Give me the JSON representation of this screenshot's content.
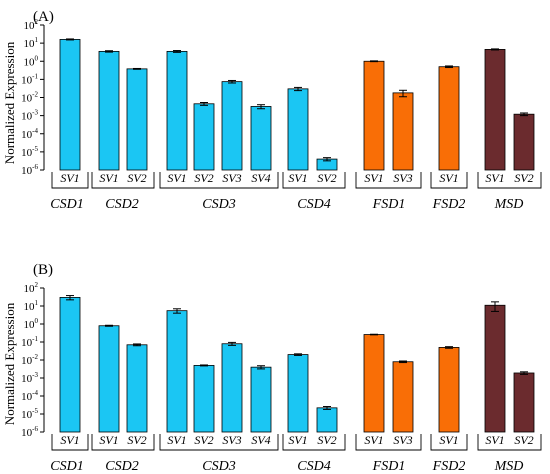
{
  "colors": {
    "CSD": "#1BC6F3",
    "FSD": "#F96E06",
    "MSD": "#6B2B2E"
  },
  "chart_data": [
    {
      "type": "bar",
      "panel_label": "(A)",
      "ylabel": "Normalized Expression",
      "yscale": "log",
      "ylim": [
        1e-06,
        100
      ],
      "ytick_base": "10",
      "ytick_exponents": [
        "2",
        "1",
        "0",
        "-1",
        "-2",
        "-3",
        "-4",
        "-5",
        "-6"
      ],
      "ytick_values": [
        100,
        10,
        1,
        0.1,
        0.01,
        0.001,
        0.0001,
        1e-05,
        1e-06
      ],
      "categories": [
        "SV1",
        "SV1",
        "SV2",
        "SV1",
        "SV2",
        "SV3",
        "SV4",
        "SV1",
        "SV2",
        "SV1",
        "SV3",
        "SV1",
        "SV1",
        "SV2"
      ],
      "groups": [
        {
          "name": "CSD1",
          "family": "CSD",
          "variants": [
            "SV1"
          ],
          "values": [
            16
          ],
          "errors": [
            1.0
          ]
        },
        {
          "name": "CSD2",
          "family": "CSD",
          "variants": [
            "SV1",
            "SV2"
          ],
          "values": [
            3.5,
            0.38
          ],
          "errors": [
            0.3,
            0.02
          ]
        },
        {
          "name": "CSD3",
          "family": "CSD",
          "variants": [
            "SV1",
            "SV2",
            "SV3",
            "SV4"
          ],
          "values": [
            3.5,
            0.0045,
            0.075,
            0.0032
          ],
          "errors": [
            0.4,
            0.0008,
            0.012,
            0.0008
          ]
        },
        {
          "name": "CSD4",
          "family": "CSD",
          "variants": [
            "SV1",
            "SV2"
          ],
          "values": [
            0.03,
            4e-06
          ],
          "errors": [
            0.006,
            8e-07
          ]
        },
        {
          "name": "FSD1",
          "family": "FSD",
          "variants": [
            "SV1",
            "SV3"
          ],
          "values": [
            1.0,
            0.018
          ],
          "errors": [
            0.05,
            0.007
          ]
        },
        {
          "name": "FSD2",
          "family": "FSD",
          "variants": [
            "SV1"
          ],
          "values": [
            0.5
          ],
          "errors": [
            0.05
          ]
        },
        {
          "name": "MSD",
          "family": "MSD",
          "variants": [
            "SV1",
            "SV2"
          ],
          "values": [
            4.5,
            0.0012
          ],
          "errors": [
            0.3,
            0.0002
          ]
        }
      ]
    },
    {
      "type": "bar",
      "panel_label": "(B)",
      "ylabel": "Normalized Expression",
      "yscale": "log",
      "ylim": [
        1e-06,
        100
      ],
      "ytick_base": "10",
      "ytick_exponents": [
        "2",
        "1",
        "0",
        "-1",
        "-2",
        "-3",
        "-4",
        "-5",
        "-6"
      ],
      "ytick_values": [
        100,
        10,
        1,
        0.1,
        0.01,
        0.001,
        0.0001,
        1e-05,
        1e-06
      ],
      "categories": [
        "SV1",
        "SV1",
        "SV2",
        "SV1",
        "SV2",
        "SV3",
        "SV4",
        "SV1",
        "SV2",
        "SV1",
        "SV3",
        "SV1",
        "SV1",
        "SV2"
      ],
      "groups": [
        {
          "name": "CSD1",
          "family": "CSD",
          "variants": [
            "SV1"
          ],
          "values": [
            30
          ],
          "errors": [
            8
          ]
        },
        {
          "name": "CSD2",
          "family": "CSD",
          "variants": [
            "SV1",
            "SV2"
          ],
          "values": [
            0.8,
            0.07
          ],
          "errors": [
            0.05,
            0.008
          ]
        },
        {
          "name": "CSD3",
          "family": "CSD",
          "variants": [
            "SV1",
            "SV2",
            "SV3",
            "SV4"
          ],
          "values": [
            5.5,
            0.005,
            0.08,
            0.004
          ],
          "errors": [
            1.5,
            0.0003,
            0.015,
            0.0008
          ]
        },
        {
          "name": "CSD4",
          "family": "CSD",
          "variants": [
            "SV1",
            "SV2"
          ],
          "values": [
            0.02,
            2.2e-05
          ],
          "errors": [
            0.002,
            4e-06
          ]
        },
        {
          "name": "FSD1",
          "family": "FSD",
          "variants": [
            "SV1",
            "SV3"
          ],
          "values": [
            0.26,
            0.008
          ],
          "errors": [
            0.01,
            0.0008
          ]
        },
        {
          "name": "FSD2",
          "family": "FSD",
          "variants": [
            "SV1"
          ],
          "values": [
            0.05
          ],
          "errors": [
            0.005
          ]
        },
        {
          "name": "MSD",
          "family": "MSD",
          "variants": [
            "SV1",
            "SV2"
          ],
          "values": [
            11,
            0.0019
          ],
          "errors": [
            6,
            0.0003
          ]
        }
      ]
    }
  ]
}
